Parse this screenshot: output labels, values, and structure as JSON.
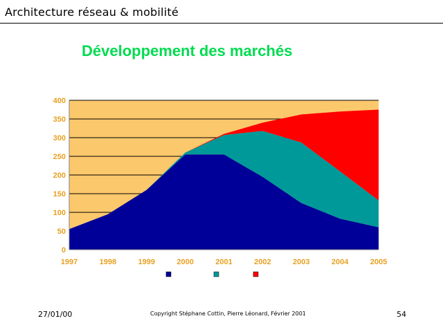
{
  "header": {
    "title": "Architecture réseau & mobilité"
  },
  "slide": {
    "heading": "Développement des marchés"
  },
  "footer": {
    "date": "27/01/00",
    "copyright": "Copyright Stéphane Cottin, Pierre Léonard, Février 2001",
    "page_number": "54"
  },
  "colors": {
    "plot_background": "#fcc86c",
    "axis_label": "#e8a020",
    "heading": "#00dc50",
    "series": [
      "#000099",
      "#009999",
      "#ff0000"
    ]
  },
  "chart_data": {
    "type": "area",
    "stacked": true,
    "title": "",
    "xlabel": "",
    "ylabel": "",
    "categories": [
      "1997",
      "1998",
      "1999",
      "2000",
      "2001",
      "2002",
      "2003",
      "2004",
      "2005"
    ],
    "y_ticks": [
      "0",
      "50",
      "100",
      "150",
      "200",
      "250",
      "300",
      "350",
      "400"
    ],
    "ylim": [
      0,
      400
    ],
    "grid": true,
    "legend_position": "bottom",
    "series": [
      {
        "name": "",
        "color": "#000099",
        "values": [
          55,
          95,
          160,
          255,
          255,
          195,
          125,
          83,
          60
        ]
      },
      {
        "name": "",
        "color": "#009999",
        "values": [
          0,
          0,
          0,
          5,
          52,
          123,
          162,
          127,
          72
        ]
      },
      {
        "name": "",
        "color": "#ff0000",
        "values": [
          0,
          0,
          0,
          0,
          3,
          22,
          75,
          160,
          243
        ]
      }
    ]
  }
}
